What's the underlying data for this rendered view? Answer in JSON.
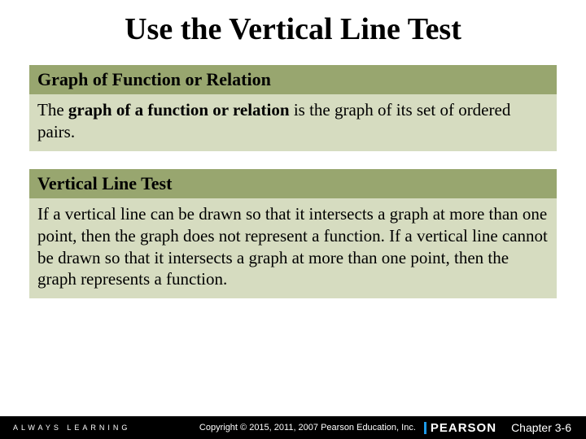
{
  "title": "Use the Vertical Line Test",
  "colors": {
    "header_bg": "#98a66f",
    "body_bg": "#d6dcc0",
    "footer_bg": "#000000",
    "footer_text": "#ffffff",
    "pearson_bar": "#1e9be9"
  },
  "box1": {
    "heading": "Graph of Function or Relation",
    "body_pre": "The ",
    "body_bold": "graph of a function or relation",
    "body_post": " is the graph of its set of ordered pairs."
  },
  "box2": {
    "heading": "Vertical Line Test",
    "body": "If a vertical line can be drawn so that it intersects a graph at more than one point, then the graph does not represent a function.  If a vertical line cannot be drawn so that it intersects a graph at more than one point, then the graph represents a function."
  },
  "footer": {
    "left": "ALWAYS LEARNING",
    "copyright": "Copyright © 2015, 2011, 2007 Pearson Education, Inc.",
    "brand": "PEARSON",
    "chapter": "Chapter 3-6"
  }
}
